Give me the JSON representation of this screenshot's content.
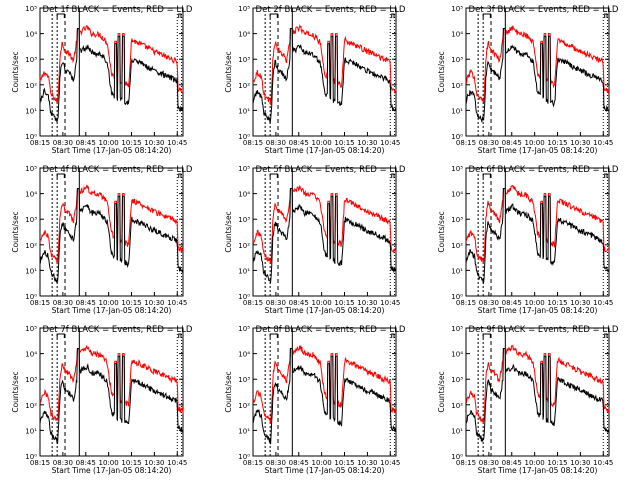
{
  "chart_data": [
    {
      "type": "line",
      "title": "Det 1f BLACK = Events, RED = LLD",
      "xlabel": "Start Time (17-Jan-05 08:14:20)",
      "ylabel": "Counts/sec",
      "x_ticks": [
        "08:15",
        "08:30",
        "08:45",
        "10:00",
        "10:15",
        "10:30",
        "10:45"
      ],
      "y_ticks": [
        "10⁰",
        "10¹",
        "10²",
        "10³",
        "10⁴",
        "10⁵"
      ],
      "y_scale": "log",
      "ylim": [
        1,
        100000
      ],
      "xlim": [
        "08:14:20",
        "10:48:00"
      ],
      "series": [
        {
          "name": "Events",
          "color": "#000000"
        },
        {
          "name": "LLD",
          "color": "#ff0000"
        }
      ]
    },
    {
      "type": "line",
      "title": "Det 2f BLACK = Events, RED = LLD",
      "xlabel": "Start Time (17-Jan-05 08:14:20)",
      "ylabel": "Counts/sec",
      "x_ticks": [
        "08:15",
        "08:30",
        "08:45",
        "10:00",
        "10:15",
        "10:30",
        "10:45"
      ],
      "y_ticks": [
        "10⁰",
        "10¹",
        "10²",
        "10³",
        "10⁴",
        "10⁵"
      ],
      "y_scale": "log",
      "ylim": [
        1,
        100000
      ],
      "xlim": [
        "08:14:20",
        "10:48:00"
      ],
      "series": [
        {
          "name": "Events",
          "color": "#000000"
        },
        {
          "name": "LLD",
          "color": "#ff0000"
        }
      ]
    },
    {
      "type": "line",
      "title": "Det 3f BLACK = Events, RED = LLD",
      "xlabel": "Start Time (17-Jan-05 08:14:20)",
      "ylabel": "Counts/sec",
      "x_ticks": [
        "08:15",
        "08:30",
        "08:45",
        "10:00",
        "10:15",
        "10:30",
        "10:45"
      ],
      "y_ticks": [
        "10⁰",
        "10¹",
        "10²",
        "10³",
        "10⁴",
        "10⁵"
      ],
      "y_scale": "log",
      "ylim": [
        1,
        100000
      ],
      "xlim": [
        "08:14:20",
        "10:48:00"
      ],
      "series": [
        {
          "name": "Events",
          "color": "#000000"
        },
        {
          "name": "LLD",
          "color": "#ff0000"
        }
      ]
    },
    {
      "type": "line",
      "title": "Det 4f BLACK = Events, RED = LLD",
      "xlabel": "Start Time (17-Jan-05 08:14:20)",
      "ylabel": "Counts/sec",
      "x_ticks": [
        "08:15",
        "08:30",
        "08:45",
        "10:00",
        "10:15",
        "10:30",
        "10:45"
      ],
      "y_ticks": [
        "10⁰",
        "10¹",
        "10²",
        "10³",
        "10⁴",
        "10⁵"
      ],
      "y_scale": "log",
      "ylim": [
        1,
        100000
      ],
      "xlim": [
        "08:14:20",
        "10:48:00"
      ],
      "series": [
        {
          "name": "Events",
          "color": "#000000"
        },
        {
          "name": "LLD",
          "color": "#ff0000"
        }
      ]
    },
    {
      "type": "line",
      "title": "Det 5f BLACK = Events, RED = LLD",
      "xlabel": "Start Time (17-Jan-05 08:14:20)",
      "ylabel": "Counts/sec",
      "x_ticks": [
        "08:15",
        "08:30",
        "08:45",
        "10:00",
        "10:15",
        "10:30",
        "10:45"
      ],
      "y_ticks": [
        "10⁰",
        "10¹",
        "10²",
        "10³",
        "10⁴",
        "10⁵"
      ],
      "y_scale": "log",
      "ylim": [
        1,
        100000
      ],
      "xlim": [
        "08:14:20",
        "10:48:00"
      ],
      "series": [
        {
          "name": "Events",
          "color": "#000000"
        },
        {
          "name": "LLD",
          "color": "#ff0000"
        }
      ]
    },
    {
      "type": "line",
      "title": "Det 6f BLACK = Events, RED = LLD",
      "xlabel": "Start Time (17-Jan-05 08:14:20)",
      "ylabel": "Counts/sec",
      "x_ticks": [
        "08:15",
        "08:30",
        "08:45",
        "10:00",
        "10:15",
        "10:30",
        "10:45"
      ],
      "y_ticks": [
        "10⁰",
        "10¹",
        "10²",
        "10³",
        "10⁴",
        "10⁵"
      ],
      "y_scale": "log",
      "ylim": [
        1,
        100000
      ],
      "xlim": [
        "08:14:20",
        "10:48:00"
      ],
      "series": [
        {
          "name": "Events",
          "color": "#000000"
        },
        {
          "name": "LLD",
          "color": "#ff0000"
        }
      ]
    },
    {
      "type": "line",
      "title": "Det 7f BLACK = Events, RED = LLD",
      "xlabel": "Start Time (17-Jan-05 08:14:20)",
      "ylabel": "Counts/sec",
      "x_ticks": [
        "08:15",
        "08:30",
        "08:45",
        "10:00",
        "10:15",
        "10:30",
        "10:45"
      ],
      "y_ticks": [
        "10⁰",
        "10¹",
        "10²",
        "10³",
        "10⁴",
        "10⁵"
      ],
      "y_scale": "log",
      "ylim": [
        1,
        100000
      ],
      "xlim": [
        "08:14:20",
        "10:48:00"
      ],
      "series": [
        {
          "name": "Events",
          "color": "#000000"
        },
        {
          "name": "LLD",
          "color": "#ff0000"
        }
      ]
    },
    {
      "type": "line",
      "title": "Det 8f BLACK = Events, RED = LLD",
      "xlabel": "Start Time (17-Jan-05 08:14:20)",
      "ylabel": "Counts/sec",
      "x_ticks": [
        "08:15",
        "08:30",
        "08:45",
        "10:00",
        "10:15",
        "10:30",
        "10:45"
      ],
      "y_ticks": [
        "10⁰",
        "10¹",
        "10²",
        "10³",
        "10⁴",
        "10⁵"
      ],
      "y_scale": "log",
      "ylim": [
        1,
        100000
      ],
      "xlim": [
        "08:14:20",
        "10:48:00"
      ],
      "series": [
        {
          "name": "Events",
          "color": "#000000"
        },
        {
          "name": "LLD",
          "color": "#ff0000"
        }
      ]
    },
    {
      "type": "line",
      "title": "Det 9f BLACK = Events, RED = LLD",
      "xlabel": "Start Time (17-Jan-05 08:14:20)",
      "ylabel": "Counts/sec",
      "x_ticks": [
        "08:15",
        "08:30",
        "08:45",
        "10:00",
        "10:15",
        "10:30",
        "10:45"
      ],
      "y_ticks": [
        "10⁰",
        "10¹",
        "10²",
        "10³",
        "10⁴",
        "10⁵"
      ],
      "y_scale": "log",
      "ylim": [
        1,
        100000
      ],
      "xlim": [
        "08:14:20",
        "10:48:00"
      ],
      "series": [
        {
          "name": "Events",
          "color": "#000000"
        },
        {
          "name": "LLD",
          "color": "#ff0000"
        }
      ]
    }
  ]
}
